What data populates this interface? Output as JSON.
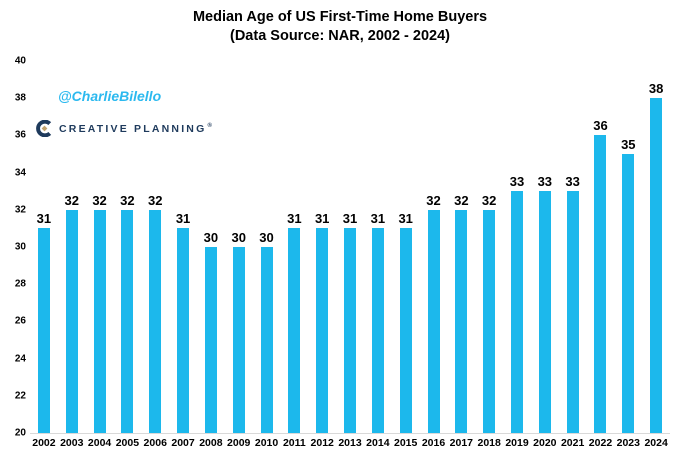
{
  "title": {
    "line1": "Median Age of US First-Time Home Buyers",
    "line2": "(Data Source: NAR, 2002 - 2024)"
  },
  "watermark": {
    "handle": "@CharlieBilello",
    "brand": "CREATIVE PLANNING",
    "brand_mark": "®"
  },
  "colors": {
    "bar": "#1cb8ec",
    "handle_blue": "#2cb9ef",
    "brand_navy": "#1e3a5c",
    "brand_gold": "#c2a470",
    "axis_line": "#d9d9d9",
    "label_text": "#000000"
  },
  "chart_data": {
    "type": "bar",
    "title": "Median Age of US First-Time Home Buyers",
    "subtitle": "(Data Source: NAR, 2002 - 2024)",
    "categories": [
      "2002",
      "2003",
      "2004",
      "2005",
      "2006",
      "2007",
      "2008",
      "2009",
      "2010",
      "2011",
      "2012",
      "2013",
      "2014",
      "2015",
      "2016",
      "2017",
      "2018",
      "2019",
      "2020",
      "2021",
      "2022",
      "2023",
      "2024"
    ],
    "values": [
      31,
      32,
      32,
      32,
      32,
      31,
      30,
      30,
      30,
      31,
      31,
      31,
      31,
      31,
      32,
      32,
      32,
      33,
      33,
      33,
      36,
      35,
      38
    ],
    "xlabel": "",
    "ylabel": "",
    "ylim": [
      20,
      40
    ],
    "yticks": [
      20,
      22,
      24,
      26,
      28,
      30,
      32,
      34,
      36,
      38,
      40
    ],
    "grid": false,
    "legend": false,
    "data_labels": true,
    "bar_color": "#1cb8ec"
  }
}
